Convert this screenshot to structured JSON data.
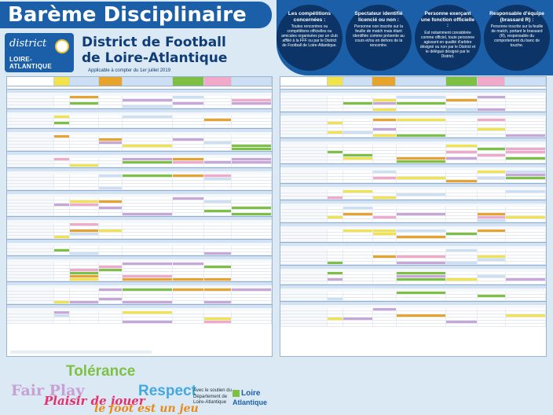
{
  "header": {
    "title": "Barème Disciplinaire",
    "logo_line1": "district",
    "logo_line2": "LOIRE-ATLANTIQUE",
    "district_line1": "District de Football",
    "district_line2": "de Loire-Atlantique",
    "applicable": "Applicable à compter du 1er juillet 2019"
  },
  "bubbles": [
    {
      "title": "Les compétitions concernées :",
      "text": "Toutes rencontres ou compétitions officielles ou amicales organisées par un club affilié à la FFF ou par le District de Football de Loire-Atlantique."
    },
    {
      "title": "Spectateur identifié licencié ou non :",
      "text": "Personne non inscrite sur la feuille de match mais étant identifiée comme présente au cours et/ou en dehors de la rencontre."
    },
    {
      "title": "Personne exerçant une fonction officielle :",
      "text": "Est notamment considérée comme officiel, toute personne agissant en qualité d'arbitre désigné ou non par le District et le délégué désigné par le District."
    },
    {
      "title": "Responsable d'équipe (brassard R) :",
      "text": "Personne inscrite sur la feuille de match, portant le brassard (R), responsable du comportement du banc de touche."
    }
  ],
  "footer": {
    "fair_play": "Fair Play",
    "tolerance": "Tolérance",
    "respect": "Respect",
    "plaisir": "Plaisir de jouer",
    "le_foot": "le foot est un jeu",
    "soutien": "Avec le soutien du Département de Loire-Atlantique",
    "la_logo_1": "Loire",
    "la_logo_2": "Atlantique"
  },
  "colors": {
    "brand_blue": "#1b5fa8",
    "dark_blue": "#0d3466",
    "green": "#7ec142",
    "orange": "#e8a42a",
    "purple": "#c9a6d8",
    "pink": "#f2a8c8",
    "yellow": "#f3e34a"
  }
}
